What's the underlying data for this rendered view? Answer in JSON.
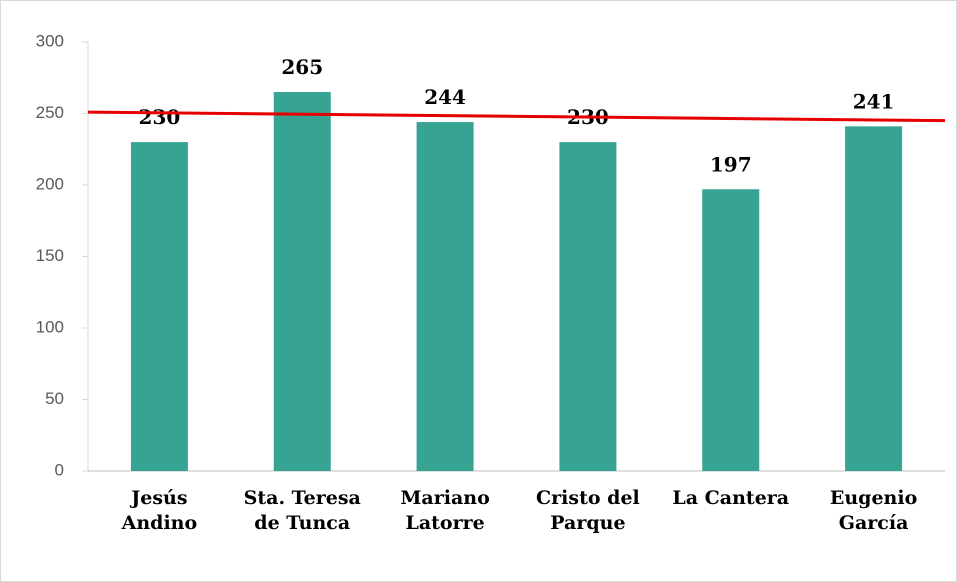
{
  "chart_data": {
    "type": "bar",
    "categories": [
      "Jesús Andino",
      "Sta. Teresa de Tunca",
      "Mariano Latorre",
      "Cristo del Parque",
      "La Cantera",
      "Eugenio García"
    ],
    "values": [
      230,
      265,
      244,
      230,
      197,
      241
    ],
    "color": "#36a393",
    "ylim": [
      0,
      300
    ],
    "yticks": [
      0,
      50,
      100,
      150,
      200,
      250,
      300
    ],
    "grid": false,
    "reference_line": {
      "color": "#e60000",
      "values": [
        251,
        245
      ]
    }
  }
}
